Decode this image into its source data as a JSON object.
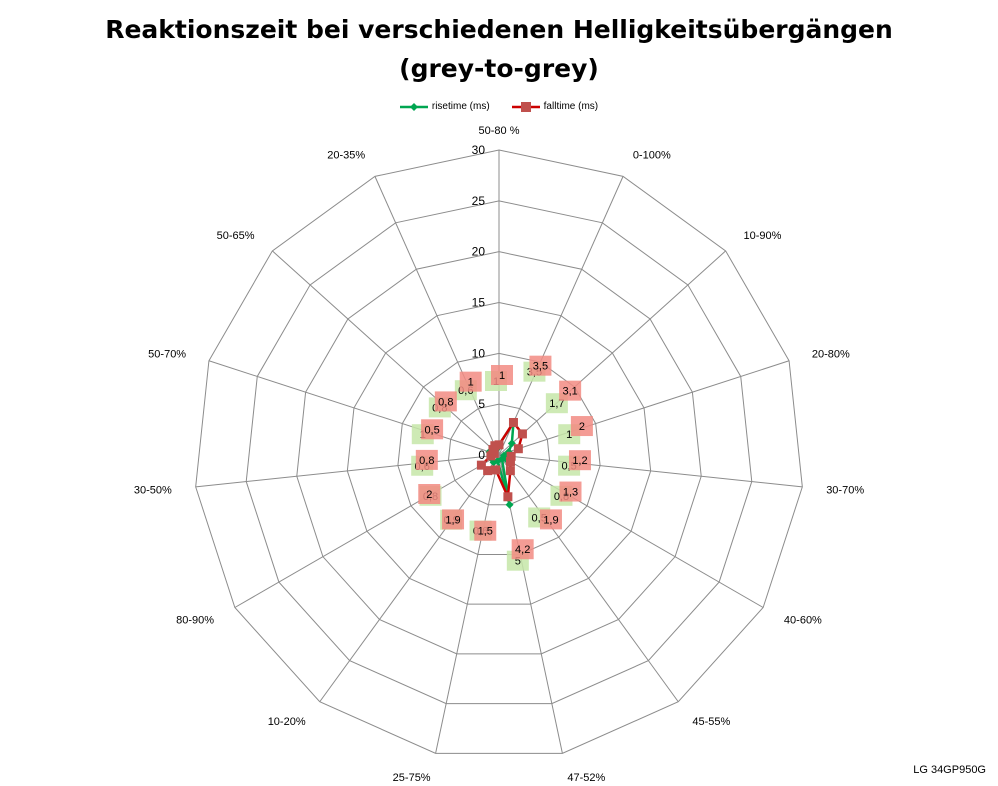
{
  "chart_data": {
    "type": "radar",
    "title": "Reaktionszeit bei verschiedenen Helligkeitsübergängen",
    "subtitle": "(grey-to-grey)",
    "categories": [
      "50-80 %",
      "0-100%",
      "10-90%",
      "20-80%",
      "30-70%",
      "40-60%",
      "45-55%",
      "47-52%",
      "25-75%",
      "10-20%",
      "80-90%",
      "30-50%",
      "50-70%",
      "50-65%",
      "20-35%"
    ],
    "rlim": [
      0,
      30
    ],
    "ticks": [
      0,
      5,
      10,
      15,
      20,
      25,
      30
    ],
    "series": [
      {
        "name": "risetime (ms)",
        "color": "#00a651",
        "marker": "diamond",
        "values": [
          1,
          3.5,
          1.7,
          1,
          0.5,
          0.8,
          0.5,
          5,
          0.6,
          0.9,
          0.8,
          0.6,
          1,
          0.8,
          0.6
        ],
        "labels": [
          "1",
          "3,5",
          "1,7",
          "1",
          "0,5",
          "0,8",
          "0,5",
          "5",
          "0,6",
          "0,9",
          "0,8",
          "0,6",
          "1",
          "0,8",
          "0,6"
        ]
      },
      {
        "name": "falltime (ms)",
        "color": "#c0504d",
        "marker": "square",
        "values": [
          1,
          3.5,
          3.1,
          2,
          1.2,
          1.3,
          1.9,
          4.2,
          1.5,
          1.9,
          2,
          0.8,
          0.5,
          0.8,
          1
        ],
        "labels": [
          "1",
          "3,5",
          "3,1",
          "2",
          "1,2",
          "1,3",
          "1,9",
          "4,2",
          "1,5",
          "1,9",
          "2",
          "0,8",
          "0,5",
          "0,8",
          "1"
        ]
      }
    ]
  },
  "credit": "LG 34GP950G"
}
